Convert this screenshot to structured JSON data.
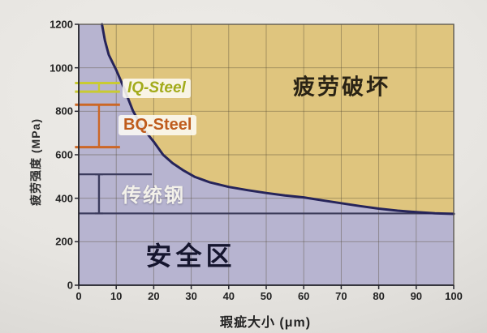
{
  "chart_data": {
    "type": "area",
    "title": "",
    "xlabel": "瑕疵大小 (μm)",
    "ylabel": "疲劳强度 (MPa)",
    "xlim": [
      0,
      100
    ],
    "ylim": [
      0,
      1200
    ],
    "x_ticks": [
      0,
      10,
      20,
      30,
      40,
      50,
      60,
      70,
      80,
      90,
      100
    ],
    "y_ticks": [
      0,
      200,
      400,
      600,
      800,
      1000,
      1200
    ],
    "grid": true,
    "legend": "none",
    "regions": [
      {
        "id": "failure",
        "label": "疲劳破坏",
        "color": "#dfc57e",
        "position": "above-curve"
      },
      {
        "id": "safe",
        "label": "安全区",
        "color": "#b7b4d0",
        "position": "below-curve"
      }
    ],
    "curve": {
      "name": "fatigue-limit-curve",
      "color": "#26245a",
      "points": [
        [
          6.2,
          1200
        ],
        [
          7,
          1125
        ],
        [
          8,
          1060
        ],
        [
          10,
          990
        ],
        [
          12,
          910
        ],
        [
          14.5,
          800
        ],
        [
          17,
          725
        ],
        [
          20,
          660
        ],
        [
          22.5,
          600
        ],
        [
          25,
          562
        ],
        [
          28,
          527
        ],
        [
          31,
          498
        ],
        [
          35,
          473
        ],
        [
          40,
          452
        ],
        [
          45,
          437
        ],
        [
          50,
          424
        ],
        [
          55,
          413
        ],
        [
          60,
          404
        ],
        [
          65,
          390
        ],
        [
          70,
          377
        ],
        [
          75,
          364
        ],
        [
          80,
          352
        ],
        [
          85,
          343
        ],
        [
          90,
          336
        ],
        [
          95,
          331
        ],
        [
          100,
          328
        ]
      ]
    },
    "baseline": {
      "y": 330,
      "color": "#3c3c5a",
      "x_range": [
        0,
        100
      ]
    },
    "steels": [
      {
        "label": "IQ-Steel",
        "text_color": "#a3ab1b",
        "bar_color": "#c9cb32",
        "y_range": [
          890,
          930
        ],
        "cap_x_range": [
          -1,
          11
        ],
        "connector_x": 5.4
      },
      {
        "label": "BQ-Steel",
        "text_color": "#bf5c1d",
        "bar_color": "#cc6726",
        "y_range": [
          635,
          830
        ],
        "cap_x_range": [
          -1,
          11
        ],
        "connector_x": 5.4
      },
      {
        "label": "传统钢",
        "text_color": "#f3f1ea",
        "bar_color": "#3c3c5e",
        "y_range": [
          330,
          510
        ],
        "cap_x_range": [
          0,
          19.5
        ],
        "connector_x": 5.4
      }
    ]
  },
  "labels": {
    "y_axis_title": "疲劳强度 (MPa)",
    "x_axis_title": "瑕疵大小 (μm)",
    "failure_region": "疲劳破坏",
    "safe_region": "安全区"
  }
}
